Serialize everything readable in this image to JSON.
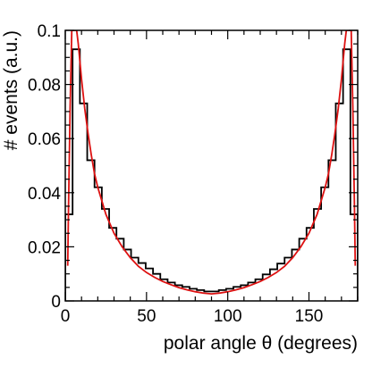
{
  "chart_data": {
    "type": "line",
    "title": "",
    "xlabel": "polar angle θ (degrees)",
    "ylabel": "# events (a.u.)",
    "xlim": [
      0,
      180
    ],
    "ylim": [
      0,
      0.1
    ],
    "x_ticks": [
      0,
      50,
      100,
      150
    ],
    "y_ticks": [
      0,
      0.02,
      0.04,
      0.06,
      0.08,
      0.1
    ],
    "x_tick_labels": [
      "0",
      "50",
      "100",
      "150"
    ],
    "y_tick_labels": [
      "0",
      "0.02",
      "0.04",
      "0.06",
      "0.08",
      "0.1"
    ],
    "grid": false,
    "legend": "none",
    "series": [
      {
        "kind": "histogram",
        "color": "#000000",
        "bin_edges": [
          0,
          4.5,
          9,
          13.5,
          18,
          22.5,
          27,
          31.5,
          36,
          40.5,
          45,
          49.5,
          54,
          58.5,
          63,
          67.5,
          72,
          76.5,
          81,
          85.5,
          90,
          94.5,
          99,
          103.5,
          108,
          112.5,
          117,
          121.5,
          126,
          130.5,
          135,
          139.5,
          144,
          148.5,
          153,
          157.5,
          162,
          166.5,
          171,
          175.5,
          180
        ],
        "values": [
          0.032,
          0.093,
          0.073,
          0.052,
          0.042,
          0.034,
          0.027,
          0.023,
          0.019,
          0.016,
          0.014,
          0.012,
          0.01,
          0.008,
          0.0068,
          0.0058,
          0.0052,
          0.0045,
          0.004,
          0.0035,
          0.0035,
          0.004,
          0.0045,
          0.0052,
          0.0058,
          0.0068,
          0.008,
          0.0098,
          0.0117,
          0.0138,
          0.016,
          0.019,
          0.023,
          0.027,
          0.034,
          0.042,
          0.052,
          0.073,
          0.093,
          0.032
        ]
      },
      {
        "kind": "curve",
        "color": "#dd1111",
        "x": [
          1.5,
          2,
          3,
          4,
          5,
          6,
          7,
          8,
          10,
          12,
          14,
          16,
          18,
          20,
          25,
          30,
          35,
          40,
          45,
          50,
          55,
          60,
          65,
          70,
          75,
          80,
          85,
          90,
          95,
          100,
          105,
          110,
          115,
          120,
          125,
          130,
          135,
          140,
          145,
          150,
          155,
          160,
          162,
          164,
          166,
          168,
          170,
          172,
          173,
          174,
          175,
          176,
          177,
          178,
          178.5
        ],
        "y": [
          0.013,
          0.035,
          0.072,
          0.1,
          0.1,
          0.1,
          0.1,
          0.095,
          0.082,
          0.071,
          0.062,
          0.054,
          0.047,
          0.042,
          0.032,
          0.025,
          0.02,
          0.016,
          0.0128,
          0.0105,
          0.0087,
          0.0072,
          0.006,
          0.0049,
          0.0041,
          0.0034,
          0.0029,
          0.0026,
          0.0029,
          0.0034,
          0.0041,
          0.0049,
          0.006,
          0.0072,
          0.0087,
          0.0105,
          0.0128,
          0.016,
          0.02,
          0.025,
          0.032,
          0.042,
          0.047,
          0.054,
          0.062,
          0.071,
          0.082,
          0.095,
          0.1,
          0.1,
          0.1,
          0.1,
          0.072,
          0.035,
          0.013
        ]
      }
    ]
  }
}
